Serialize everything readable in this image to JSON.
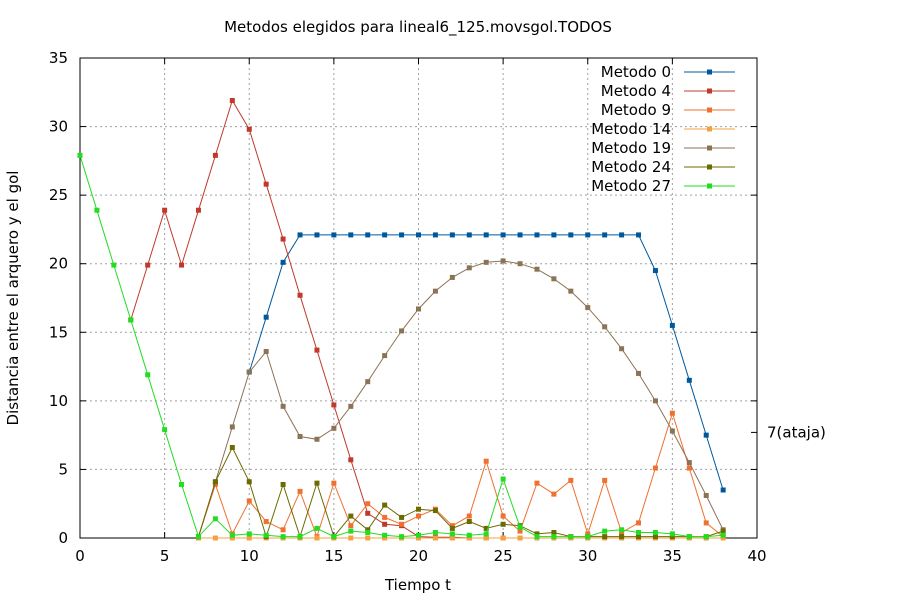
{
  "chart_data": {
    "type": "line",
    "title": "Metodos elegidos para lineal6_125.movsgol.TODOS",
    "xlabel": "Tiempo t",
    "ylabel": "Distancia entre el arquero y el gol",
    "xlim": [
      0,
      40
    ],
    "ylim": [
      0,
      35
    ],
    "xticks": [
      0,
      5,
      10,
      15,
      20,
      25,
      30,
      35,
      40
    ],
    "yticks": [
      0,
      5,
      10,
      15,
      20,
      25,
      30,
      35
    ],
    "xtick_labels": [
      "0",
      "5",
      "10",
      "15",
      "20",
      "25",
      "30",
      "35",
      "40"
    ],
    "ytick_labels": [
      "0",
      "5",
      "10",
      "15",
      "20",
      "25",
      "30",
      "35"
    ],
    "grid": true,
    "legend_position": "top-right",
    "annotation": {
      "text": "7(ataja)",
      "y": 7.7
    },
    "series": [
      {
        "name": "Metodo 0",
        "color": "#00589c",
        "x": [
          10,
          11,
          12,
          13,
          14,
          15,
          16,
          17,
          18,
          19,
          20,
          21,
          22,
          23,
          24,
          25,
          26,
          27,
          28,
          29,
          30,
          31,
          32,
          33,
          34,
          35,
          36,
          37,
          38
        ],
        "y": [
          12.1,
          16.1,
          20.1,
          22.1,
          22.1,
          22.1,
          22.1,
          22.1,
          22.1,
          22.1,
          22.1,
          22.1,
          22.1,
          22.1,
          22.1,
          22.1,
          22.1,
          22.1,
          22.1,
          22.1,
          22.1,
          22.1,
          22.1,
          22.1,
          19.5,
          15.5,
          11.5,
          7.5,
          3.5
        ]
      },
      {
        "name": "Metodo 4",
        "color": "#c0392b",
        "x": [
          3,
          4,
          5,
          6,
          7,
          8,
          9,
          10,
          11,
          12,
          13,
          14,
          15,
          16,
          17,
          18,
          19,
          20,
          21,
          22,
          23,
          24,
          25,
          26
        ],
        "y": [
          15.9,
          19.9,
          23.9,
          19.9,
          23.9,
          27.9,
          31.9,
          29.8,
          25.8,
          21.8,
          17.7,
          13.7,
          9.7,
          5.7,
          1.8,
          1.0,
          0.9,
          0.1,
          0.05,
          0.05,
          0.0,
          0.0,
          0.0,
          0.0
        ]
      },
      {
        "name": "Metodo 9",
        "color": "#f07030",
        "x": [
          7,
          8,
          9,
          10,
          11,
          12,
          13,
          14,
          15,
          16,
          17,
          18,
          19,
          20,
          21,
          22,
          23,
          24,
          25,
          26,
          27,
          28,
          29,
          30,
          31,
          32,
          33,
          34,
          35,
          36,
          37,
          38
        ],
        "y": [
          0.1,
          3.9,
          0.3,
          2.7,
          1.2,
          0.6,
          3.4,
          0.1,
          4.0,
          0.9,
          2.5,
          1.5,
          1.0,
          1.6,
          2.1,
          0.9,
          1.6,
          5.6,
          1.6,
          0.5,
          4.0,
          3.2,
          4.2,
          0.3,
          4.2,
          0.4,
          1.1,
          5.1,
          9.1,
          5.1,
          1.1,
          0.1
        ]
      },
      {
        "name": "Metodo 14",
        "color": "#f4a040",
        "x": [
          7,
          8,
          9,
          10,
          11,
          12,
          13,
          14,
          15,
          16,
          17,
          18,
          19,
          20,
          21,
          22,
          23,
          24,
          25,
          26,
          27,
          28,
          29,
          30,
          31,
          32,
          33,
          34,
          35,
          36,
          37,
          38
        ],
        "y": [
          0.0,
          0.0,
          0.0,
          0.0,
          0.0,
          0.0,
          0.0,
          0.0,
          0.0,
          0.0,
          0.0,
          0.0,
          0.0,
          0.0,
          0.0,
          0.0,
          0.0,
          0.0,
          0.0,
          0.0,
          0.0,
          0.0,
          0.0,
          0.0,
          0.0,
          0.0,
          0.0,
          0.0,
          0.0,
          0.0,
          0.0,
          0.0
        ]
      },
      {
        "name": "Metodo 19",
        "color": "#8b7355",
        "x": [
          7,
          8,
          9,
          10,
          11,
          12,
          13,
          14,
          15,
          16,
          17,
          18,
          19,
          20,
          21,
          22,
          23,
          24,
          25,
          26,
          27,
          28,
          29,
          30,
          31,
          32,
          33,
          34,
          35,
          36,
          37,
          38
        ],
        "y": [
          0.1,
          4.1,
          8.1,
          12.1,
          13.6,
          9.6,
          7.4,
          7.2,
          8.0,
          9.6,
          11.4,
          13.3,
          15.1,
          16.7,
          18.0,
          19.0,
          19.7,
          20.1,
          20.2,
          20.0,
          19.6,
          18.9,
          18.0,
          16.8,
          15.4,
          13.8,
          12.0,
          10.0,
          7.8,
          5.5,
          3.1,
          0.6
        ]
      },
      {
        "name": "Metodo 24",
        "color": "#6b6b00",
        "x": [
          7,
          8,
          9,
          10,
          11,
          12,
          13,
          14,
          15,
          16,
          17,
          18,
          19,
          20,
          21,
          22,
          23,
          24,
          25,
          26,
          27,
          28,
          29,
          30,
          31,
          32,
          33,
          34,
          35,
          36,
          37,
          38
        ],
        "y": [
          0.1,
          4.1,
          6.6,
          4.1,
          0.1,
          3.9,
          0.1,
          4.0,
          0.1,
          1.6,
          0.6,
          2.4,
          1.5,
          2.1,
          2.0,
          0.7,
          1.2,
          0.7,
          1.0,
          0.9,
          0.3,
          0.4,
          0.1,
          0.1,
          0.1,
          0.1,
          0.1,
          0.1,
          0.1,
          0.1,
          0.1,
          0.5
        ]
      },
      {
        "name": "Metodo 27",
        "color": "#22dd22",
        "x": [
          0,
          1,
          2,
          3,
          4,
          5,
          6,
          7,
          8,
          9,
          10,
          11,
          12,
          13,
          14,
          15,
          16,
          17,
          18,
          19,
          20,
          21,
          22,
          23,
          24,
          25,
          26,
          27,
          28,
          29,
          30,
          31,
          32,
          33,
          34,
          35,
          36,
          37,
          38
        ],
        "y": [
          27.9,
          23.9,
          19.9,
          15.9,
          11.9,
          7.9,
          3.9,
          0.1,
          1.4,
          0.2,
          0.3,
          0.2,
          0.1,
          0.1,
          0.7,
          0.1,
          0.5,
          0.4,
          0.2,
          0.1,
          0.2,
          0.4,
          0.3,
          0.2,
          0.3,
          4.3,
          0.8,
          0.1,
          0.1,
          0.1,
          0.1,
          0.5,
          0.6,
          0.4,
          0.4,
          0.3,
          0.1,
          0.1,
          0.2
        ]
      }
    ]
  }
}
